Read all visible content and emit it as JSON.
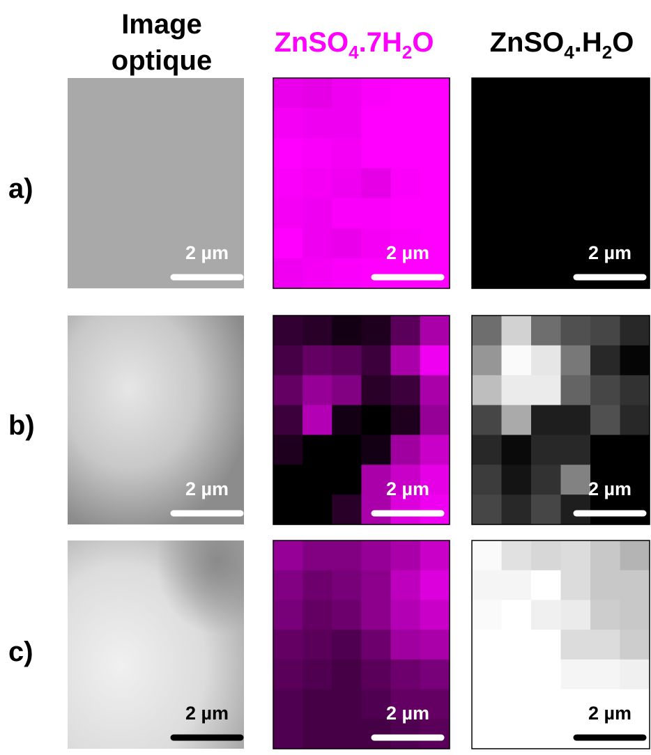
{
  "headers": [
    {
      "parts": [
        "Image"
      ],
      "line2": "optique"
    },
    {
      "parts": [
        "ZnSO",
        "4",
        ".7H",
        "2",
        "O"
      ]
    },
    {
      "parts": [
        "ZnSO",
        "4",
        ".H",
        "2",
        "O"
      ]
    }
  ],
  "rows": [
    "a)",
    "b)",
    "c)"
  ],
  "scale_bars": [
    [
      "2 µm",
      "2 µm",
      "2 µm"
    ],
    [
      "2 µm",
      "2 µm",
      "2 µm"
    ],
    [
      "2 µm",
      "2 µm",
      "2 µm"
    ]
  ]
}
